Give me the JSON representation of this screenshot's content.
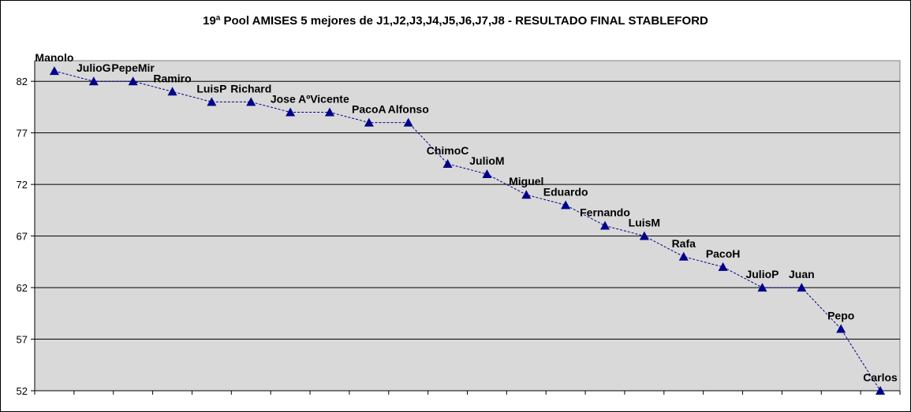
{
  "chart_data": {
    "type": "line",
    "title": "19ª Pool AMISES 5 mejores de  J1,J2,J3,J4,J5,J6,J7,J8  - RESULTADO FINAL STABLEFORD",
    "xlabel": "",
    "ylabel": "",
    "ylim": [
      52,
      84
    ],
    "yticks": [
      52,
      57,
      62,
      67,
      72,
      77,
      82
    ],
    "grid": true,
    "legend": "none",
    "colors": {
      "plot_background": "#d9d9d9",
      "line": "#00008b",
      "marker": "#00008b",
      "gridline": "#000000"
    },
    "series": [
      {
        "labels": [
          "Manolo",
          "JulioG",
          "PepeMir",
          "Ramiro",
          "LuisP",
          "Richard",
          "Jose Aº",
          "Vicente",
          "PacoA",
          "Alfonso",
          "ChimoC",
          "JulioM",
          "Miguel",
          "Eduardo",
          "Fernando",
          "LuisM",
          "Rafa",
          "PacoH",
          "JulioP",
          "Juan",
          "Pepo",
          "Carlos"
        ],
        "values": [
          83,
          82,
          82,
          81,
          80,
          80,
          79,
          79,
          78,
          78,
          74,
          73,
          71,
          70,
          68,
          67,
          65,
          64,
          62,
          62,
          58,
          52
        ]
      }
    ]
  }
}
